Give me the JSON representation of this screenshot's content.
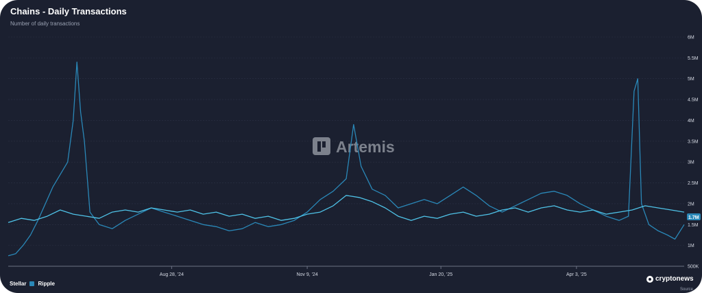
{
  "header": {
    "title": "Chains - Daily Transactions",
    "subtitle": "Number of daily transactions"
  },
  "watermark": "Artemis",
  "brand": "cryptonews",
  "source": "Source",
  "legend": {
    "stellar": "Stellar",
    "ripple": "Ripple"
  },
  "colors": {
    "background": "#1b2030",
    "stellar": "#4fc3e8",
    "ripple": "#2a88b8",
    "grid": "#2c3245",
    "badge": "#2a88b8"
  },
  "badge_value": "1.7M",
  "chart_data": {
    "type": "line",
    "title": "Chains - Daily Transactions",
    "subtitle": "Number of daily transactions",
    "x_range": [
      "2024-06-01",
      "2025-05-31"
    ],
    "x_ticks": [
      "Aug 28, '24",
      "Nov 9, '24",
      "Jan 20, '25",
      "Apr 3, '25"
    ],
    "x_tick_dates": [
      "2024-08-28",
      "2024-11-09",
      "2025-01-20",
      "2025-04-03"
    ],
    "y_ticks": [
      "500K",
      "1M",
      "1.5M",
      "2M",
      "2.5M",
      "3M",
      "3.5M",
      "4M",
      "4.5M",
      "5M",
      "5.5M",
      "6M"
    ],
    "ylim": [
      500000,
      6000000
    ],
    "grid": true,
    "legend_position": "bottom-left",
    "series": [
      {
        "name": "Stellar",
        "color": "#4fc3e8",
        "points": [
          [
            "2024-06-01",
            1550000
          ],
          [
            "2024-06-08",
            1650000
          ],
          [
            "2024-06-15",
            1600000
          ],
          [
            "2024-06-22",
            1700000
          ],
          [
            "2024-06-29",
            1850000
          ],
          [
            "2024-07-06",
            1750000
          ],
          [
            "2024-07-13",
            1700000
          ],
          [
            "2024-07-20",
            1650000
          ],
          [
            "2024-07-27",
            1800000
          ],
          [
            "2024-08-03",
            1850000
          ],
          [
            "2024-08-10",
            1800000
          ],
          [
            "2024-08-17",
            1900000
          ],
          [
            "2024-08-24",
            1850000
          ],
          [
            "2024-08-31",
            1800000
          ],
          [
            "2024-09-07",
            1850000
          ],
          [
            "2024-09-14",
            1750000
          ],
          [
            "2024-09-21",
            1800000
          ],
          [
            "2024-09-28",
            1700000
          ],
          [
            "2024-10-05",
            1750000
          ],
          [
            "2024-10-12",
            1650000
          ],
          [
            "2024-10-19",
            1700000
          ],
          [
            "2024-10-26",
            1600000
          ],
          [
            "2024-11-02",
            1650000
          ],
          [
            "2024-11-09",
            1750000
          ],
          [
            "2024-11-16",
            1800000
          ],
          [
            "2024-11-23",
            1950000
          ],
          [
            "2024-11-30",
            2200000
          ],
          [
            "2024-12-07",
            2150000
          ],
          [
            "2024-12-14",
            2050000
          ],
          [
            "2024-12-21",
            1900000
          ],
          [
            "2024-12-28",
            1700000
          ],
          [
            "2025-01-04",
            1600000
          ],
          [
            "2025-01-11",
            1700000
          ],
          [
            "2025-01-18",
            1650000
          ],
          [
            "2025-01-25",
            1750000
          ],
          [
            "2025-02-01",
            1800000
          ],
          [
            "2025-02-08",
            1700000
          ],
          [
            "2025-02-15",
            1750000
          ],
          [
            "2025-02-22",
            1850000
          ],
          [
            "2025-03-01",
            1900000
          ],
          [
            "2025-03-08",
            1800000
          ],
          [
            "2025-03-15",
            1900000
          ],
          [
            "2025-03-22",
            1950000
          ],
          [
            "2025-03-29",
            1850000
          ],
          [
            "2025-04-05",
            1800000
          ],
          [
            "2025-04-12",
            1850000
          ],
          [
            "2025-04-19",
            1750000
          ],
          [
            "2025-04-26",
            1800000
          ],
          [
            "2025-05-03",
            1850000
          ],
          [
            "2025-05-10",
            1950000
          ],
          [
            "2025-05-17",
            1900000
          ],
          [
            "2025-05-24",
            1850000
          ],
          [
            "2025-05-31",
            1800000
          ]
        ]
      },
      {
        "name": "Ripple",
        "color": "#2a88b8",
        "points": [
          [
            "2024-06-01",
            750000
          ],
          [
            "2024-06-05",
            800000
          ],
          [
            "2024-06-09",
            1000000
          ],
          [
            "2024-06-13",
            1250000
          ],
          [
            "2024-06-17",
            1600000
          ],
          [
            "2024-06-21",
            2000000
          ],
          [
            "2024-06-25",
            2400000
          ],
          [
            "2024-06-29",
            2700000
          ],
          [
            "2024-07-03",
            3000000
          ],
          [
            "2024-07-06",
            4000000
          ],
          [
            "2024-07-08",
            5400000
          ],
          [
            "2024-07-10",
            4200000
          ],
          [
            "2024-07-12",
            3500000
          ],
          [
            "2024-07-15",
            1800000
          ],
          [
            "2024-07-20",
            1500000
          ],
          [
            "2024-07-27",
            1400000
          ],
          [
            "2024-08-03",
            1600000
          ],
          [
            "2024-08-10",
            1750000
          ],
          [
            "2024-08-17",
            1900000
          ],
          [
            "2024-08-24",
            1800000
          ],
          [
            "2024-08-31",
            1700000
          ],
          [
            "2024-09-07",
            1600000
          ],
          [
            "2024-09-14",
            1500000
          ],
          [
            "2024-09-21",
            1450000
          ],
          [
            "2024-09-28",
            1350000
          ],
          [
            "2024-10-05",
            1400000
          ],
          [
            "2024-10-12",
            1550000
          ],
          [
            "2024-10-19",
            1450000
          ],
          [
            "2024-10-26",
            1500000
          ],
          [
            "2024-11-02",
            1600000
          ],
          [
            "2024-11-09",
            1800000
          ],
          [
            "2024-11-16",
            2100000
          ],
          [
            "2024-11-23",
            2300000
          ],
          [
            "2024-11-30",
            2600000
          ],
          [
            "2024-12-04",
            3900000
          ],
          [
            "2024-12-08",
            2900000
          ],
          [
            "2024-12-14",
            2350000
          ],
          [
            "2024-12-21",
            2200000
          ],
          [
            "2024-12-28",
            1900000
          ],
          [
            "2025-01-04",
            2000000
          ],
          [
            "2025-01-11",
            2100000
          ],
          [
            "2025-01-18",
            2000000
          ],
          [
            "2025-01-25",
            2200000
          ],
          [
            "2025-02-01",
            2400000
          ],
          [
            "2025-02-08",
            2200000
          ],
          [
            "2025-02-15",
            1950000
          ],
          [
            "2025-02-22",
            1800000
          ],
          [
            "2025-03-01",
            1950000
          ],
          [
            "2025-03-08",
            2100000
          ],
          [
            "2025-03-15",
            2250000
          ],
          [
            "2025-03-22",
            2300000
          ],
          [
            "2025-03-29",
            2200000
          ],
          [
            "2025-04-05",
            2000000
          ],
          [
            "2025-04-12",
            1850000
          ],
          [
            "2025-04-19",
            1700000
          ],
          [
            "2025-04-26",
            1600000
          ],
          [
            "2025-05-01",
            1700000
          ],
          [
            "2025-05-04",
            4700000
          ],
          [
            "2025-05-06",
            5000000
          ],
          [
            "2025-05-08",
            2000000
          ],
          [
            "2025-05-12",
            1500000
          ],
          [
            "2025-05-17",
            1350000
          ],
          [
            "2025-05-22",
            1250000
          ],
          [
            "2025-05-26",
            1150000
          ],
          [
            "2025-05-31",
            1500000
          ]
        ]
      }
    ]
  }
}
